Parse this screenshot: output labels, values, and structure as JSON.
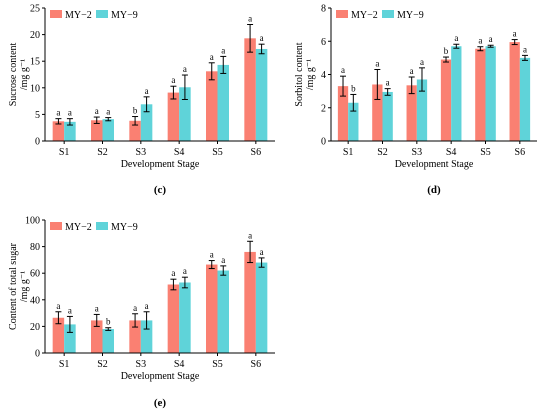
{
  "colors": {
    "MY-2": "#fa8072",
    "MY-9": "#5fd3d9",
    "axis": "#000000"
  },
  "chart_data": [
    {
      "id": "c",
      "type": "bar",
      "panel_label": "(c)",
      "xlabel": "Development Stage",
      "ylabel_lines": [
        "Sucrose content",
        "/mg g⁻¹"
      ],
      "ylim": [
        0,
        25
      ],
      "yticks": [
        0,
        5,
        10,
        15,
        20,
        25
      ],
      "categories": [
        "S1",
        "S2",
        "S3",
        "S4",
        "S5",
        "S6"
      ],
      "series": [
        {
          "name": "MY−2",
          "values": [
            3.7,
            3.9,
            3.8,
            9.1,
            13.1,
            19.3
          ],
          "errors": [
            0.5,
            0.6,
            0.8,
            1.2,
            1.6,
            2.6
          ],
          "labels": [
            "a",
            "a",
            "b",
            "a",
            "a",
            "a"
          ]
        },
        {
          "name": "MY−9",
          "values": [
            3.6,
            4.1,
            6.9,
            10.1,
            14.3,
            17.3
          ],
          "errors": [
            0.6,
            0.3,
            1.4,
            2.3,
            1.6,
            0.9
          ],
          "labels": [
            "a",
            "a",
            "a",
            "a",
            "a",
            "a"
          ]
        }
      ],
      "legend": "top-left",
      "grid": false
    },
    {
      "id": "d",
      "type": "bar",
      "panel_label": "(d)",
      "xlabel": "Development Stage",
      "ylabel_lines": [
        "Sorbitol content",
        "/mg g⁻¹"
      ],
      "ylim": [
        0,
        8
      ],
      "yticks": [
        0,
        2,
        4,
        6,
        8
      ],
      "categories": [
        "S1",
        "S2",
        "S3",
        "S4",
        "S5",
        "S6"
      ],
      "series": [
        {
          "name": "MY−2",
          "values": [
            3.3,
            3.4,
            3.35,
            4.9,
            5.55,
            5.95
          ],
          "errors": [
            0.6,
            0.9,
            0.5,
            0.15,
            0.12,
            0.15
          ],
          "labels": [
            "a",
            "a",
            "a",
            "b",
            "a",
            "a"
          ]
        },
        {
          "name": "MY−9",
          "values": [
            2.3,
            2.95,
            3.7,
            5.7,
            5.7,
            5.0
          ],
          "errors": [
            0.5,
            0.2,
            0.7,
            0.12,
            0.06,
            0.15
          ],
          "labels": [
            "b",
            "a",
            "a",
            "a",
            "a",
            "a"
          ]
        }
      ],
      "legend": "top-left",
      "grid": false
    },
    {
      "id": "e",
      "type": "bar",
      "panel_label": "(e)",
      "xlabel": "Development Stage",
      "ylabel_lines": [
        "Content of total sugar",
        "/mg g⁻¹"
      ],
      "ylim": [
        0,
        100
      ],
      "yticks": [
        0,
        20,
        40,
        60,
        80,
        100
      ],
      "categories": [
        "S1",
        "S2",
        "S3",
        "S4",
        "S5",
        "S6"
      ],
      "series": [
        {
          "name": "MY−2",
          "values": [
            26.5,
            24.5,
            24.5,
            51.5,
            66.5,
            76.0
          ],
          "errors": [
            4.5,
            4.5,
            5.0,
            4.0,
            3.0,
            8.0
          ],
          "labels": [
            "a",
            "a",
            "a",
            "a",
            "a",
            "a"
          ]
        },
        {
          "name": "MY−9",
          "values": [
            21.5,
            18.0,
            24.5,
            53.0,
            62.0,
            68.0
          ],
          "errors": [
            6.0,
            1.0,
            6.5,
            4.0,
            3.5,
            3.5
          ],
          "labels": [
            "a",
            "b",
            "a",
            "a",
            "a",
            "a"
          ]
        }
      ],
      "legend": "top-left",
      "grid": false
    }
  ]
}
